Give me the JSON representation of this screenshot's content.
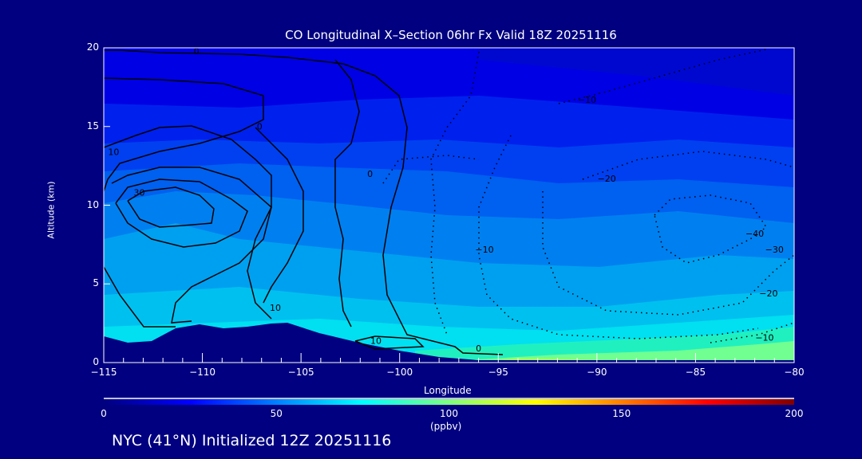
{
  "chart_data": {
    "type": "heatmap",
    "title": "CO Longitudinal X–Section 06hr  Fx Valid 18Z 20251116",
    "xlabel": "Longitude",
    "ylabel": "Altitude (km)",
    "xlim": [
      -115,
      -80
    ],
    "ylim": [
      0,
      20
    ],
    "xticks": [
      "−115",
      "−110",
      "−105",
      "−100",
      "−95",
      "−90",
      "−85",
      "−80"
    ],
    "xtick_values": [
      -115,
      -110,
      -105,
      -100,
      -95,
      -90,
      -85,
      -80
    ],
    "yticks": [
      "0",
      "5",
      "10",
      "15",
      "20"
    ],
    "ytick_values": [
      0,
      5,
      10,
      15,
      20
    ],
    "colorbar": {
      "range": [
        0,
        200
      ],
      "ticks": [
        "0",
        "50",
        "100",
        "150",
        "200"
      ],
      "tick_values": [
        0,
        50,
        100,
        150,
        200
      ],
      "units": "(ppbv)",
      "colors": [
        "#000080",
        "#0000ff",
        "#0080ff",
        "#00ffff",
        "#80ff80",
        "#ffff00",
        "#ff8000",
        "#ff0000",
        "#800000"
      ]
    },
    "contour_labels": [
      {
        "text": "0",
        "lon": -110.3,
        "alt": 19.6
      },
      {
        "text": "0",
        "lon": -107.1,
        "alt": 14.8
      },
      {
        "text": "10",
        "lon": -114.5,
        "alt": 13.2
      },
      {
        "text": "0",
        "lon": -101.5,
        "alt": 11.8
      },
      {
        "text": "30",
        "lon": -113.2,
        "alt": 10.6
      },
      {
        "text": "−10",
        "lon": -90.5,
        "alt": 16.5
      },
      {
        "text": "−20",
        "lon": -89.5,
        "alt": 11.5
      },
      {
        "text": "−10",
        "lon": -95.7,
        "alt": 7.0
      },
      {
        "text": "−40",
        "lon": -82.0,
        "alt": 8.0
      },
      {
        "text": "−30",
        "lon": -81.0,
        "alt": 7.0
      },
      {
        "text": "−20",
        "lon": -81.3,
        "alt": 4.2
      },
      {
        "text": "−10",
        "lon": -81.5,
        "alt": 1.4
      },
      {
        "text": "10",
        "lon": -106.3,
        "alt": 3.3
      },
      {
        "text": "10",
        "lon": -101.2,
        "alt": 1.2
      },
      {
        "text": "0",
        "lon": -96.0,
        "alt": 0.7
      }
    ]
  },
  "footer": "NYC (41°N) Initialized 12Z 20251116"
}
